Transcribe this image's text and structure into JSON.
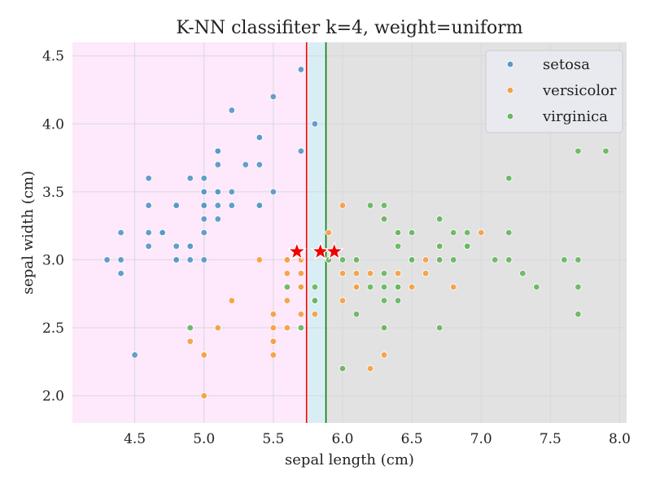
{
  "chart_data": {
    "type": "scatter",
    "title": "K-NN classifiter k=4, weight=uniform",
    "xlabel": "sepal length (cm)",
    "ylabel": "sepal width (cm)",
    "xlim": [
      4.05,
      8.05
    ],
    "ylim": [
      1.8,
      4.6
    ],
    "xticks": [
      "4.5",
      "5.0",
      "5.5",
      "6.0",
      "6.5",
      "7.0",
      "7.5",
      "8.0"
    ],
    "yticks": [
      "2.0",
      "2.5",
      "3.0",
      "3.5",
      "4.0",
      "4.5"
    ],
    "grid": true,
    "legend_position": "top-right",
    "background": "#eaeaf2",
    "regions": [
      {
        "class": "setosa",
        "x_from": 4.05,
        "x_to": 5.74,
        "color": "#fde9fb"
      },
      {
        "class": "versicolor",
        "x_from": 5.74,
        "x_to": 5.88,
        "color": "#d9eef4"
      },
      {
        "class": "virginica",
        "x_from": 5.88,
        "x_to": 8.05,
        "color": "#e2e2e2"
      }
    ],
    "boundaries": [
      {
        "x": 5.74,
        "color": "#ff0000"
      },
      {
        "x": 5.88,
        "color": "#008000"
      }
    ],
    "series": [
      {
        "name": "setosa",
        "color": "#5a9ac8",
        "points": [
          [
            5.1,
            3.5
          ],
          [
            4.9,
            3.0
          ],
          [
            4.7,
            3.2
          ],
          [
            4.6,
            3.1
          ],
          [
            5.0,
            3.6
          ],
          [
            5.4,
            3.9
          ],
          [
            4.6,
            3.4
          ],
          [
            5.0,
            3.4
          ],
          [
            4.4,
            2.9
          ],
          [
            4.9,
            3.1
          ],
          [
            5.4,
            3.7
          ],
          [
            4.8,
            3.4
          ],
          [
            4.8,
            3.0
          ],
          [
            4.3,
            3.0
          ],
          [
            5.8,
            4.0
          ],
          [
            5.7,
            4.4
          ],
          [
            5.4,
            3.9
          ],
          [
            5.1,
            3.5
          ],
          [
            5.7,
            3.8
          ],
          [
            5.1,
            3.8
          ],
          [
            5.4,
            3.4
          ],
          [
            5.1,
            3.7
          ],
          [
            4.6,
            3.6
          ],
          [
            5.1,
            3.3
          ],
          [
            4.8,
            3.4
          ],
          [
            5.0,
            3.0
          ],
          [
            5.0,
            3.4
          ],
          [
            5.2,
            3.5
          ],
          [
            5.2,
            3.4
          ],
          [
            4.7,
            3.2
          ],
          [
            4.8,
            3.1
          ],
          [
            5.4,
            3.4
          ],
          [
            5.2,
            4.1
          ],
          [
            5.5,
            4.2
          ],
          [
            4.9,
            3.1
          ],
          [
            5.0,
            3.2
          ],
          [
            5.5,
            3.5
          ],
          [
            4.9,
            3.6
          ],
          [
            4.4,
            3.0
          ],
          [
            5.1,
            3.4
          ],
          [
            5.0,
            3.5
          ],
          [
            4.5,
            2.3
          ],
          [
            4.4,
            3.2
          ],
          [
            5.0,
            3.5
          ],
          [
            5.1,
            3.8
          ],
          [
            4.8,
            3.0
          ],
          [
            5.1,
            3.8
          ],
          [
            4.6,
            3.2
          ],
          [
            5.3,
            3.7
          ],
          [
            5.0,
            3.3
          ]
        ]
      },
      {
        "name": "versicolor",
        "color": "#f4a048",
        "points": [
          [
            7.0,
            3.2
          ],
          [
            6.4,
            3.2
          ],
          [
            6.9,
            3.1
          ],
          [
            5.5,
            2.3
          ],
          [
            6.5,
            2.8
          ],
          [
            5.7,
            2.8
          ],
          [
            6.3,
            3.3
          ],
          [
            4.9,
            2.4
          ],
          [
            6.6,
            2.9
          ],
          [
            5.2,
            2.7
          ],
          [
            5.0,
            2.0
          ],
          [
            5.9,
            3.0
          ],
          [
            6.0,
            2.2
          ],
          [
            6.1,
            2.9
          ],
          [
            5.6,
            2.9
          ],
          [
            6.7,
            3.1
          ],
          [
            5.6,
            3.0
          ],
          [
            5.8,
            2.7
          ],
          [
            6.2,
            2.2
          ],
          [
            5.6,
            2.5
          ],
          [
            5.9,
            3.2
          ],
          [
            6.1,
            2.8
          ],
          [
            6.3,
            2.5
          ],
          [
            6.1,
            2.8
          ],
          [
            6.4,
            2.9
          ],
          [
            6.6,
            3.0
          ],
          [
            6.8,
            2.8
          ],
          [
            6.7,
            3.0
          ],
          [
            6.0,
            2.9
          ],
          [
            5.7,
            2.6
          ],
          [
            5.5,
            2.4
          ],
          [
            5.5,
            2.4
          ],
          [
            5.8,
            2.7
          ],
          [
            6.0,
            2.7
          ],
          [
            5.4,
            3.0
          ],
          [
            6.0,
            3.4
          ],
          [
            6.7,
            3.1
          ],
          [
            6.3,
            2.3
          ],
          [
            5.6,
            3.0
          ],
          [
            5.5,
            2.5
          ],
          [
            5.5,
            2.6
          ],
          [
            6.1,
            3.0
          ],
          [
            5.8,
            2.6
          ],
          [
            5.0,
            2.3
          ],
          [
            5.6,
            2.7
          ],
          [
            5.7,
            3.0
          ],
          [
            5.7,
            2.9
          ],
          [
            6.2,
            2.9
          ],
          [
            5.1,
            2.5
          ],
          [
            5.7,
            2.8
          ]
        ]
      },
      {
        "name": "virginica",
        "color": "#6ab764",
        "points": [
          [
            6.3,
            3.3
          ],
          [
            5.8,
            2.7
          ],
          [
            7.1,
            3.0
          ],
          [
            6.3,
            2.9
          ],
          [
            6.5,
            3.0
          ],
          [
            7.6,
            3.0
          ],
          [
            4.9,
            2.5
          ],
          [
            7.3,
            2.9
          ],
          [
            6.7,
            2.5
          ],
          [
            7.2,
            3.6
          ],
          [
            6.5,
            3.2
          ],
          [
            6.4,
            2.7
          ],
          [
            6.8,
            3.0
          ],
          [
            5.7,
            2.5
          ],
          [
            5.8,
            2.8
          ],
          [
            6.4,
            3.2
          ],
          [
            6.5,
            3.0
          ],
          [
            7.7,
            3.8
          ],
          [
            7.7,
            2.6
          ],
          [
            6.0,
            2.2
          ],
          [
            6.9,
            3.2
          ],
          [
            5.6,
            2.8
          ],
          [
            7.7,
            2.8
          ],
          [
            6.3,
            2.7
          ],
          [
            6.7,
            3.3
          ],
          [
            7.2,
            3.2
          ],
          [
            6.2,
            2.8
          ],
          [
            6.1,
            3.0
          ],
          [
            6.4,
            2.8
          ],
          [
            7.2,
            3.0
          ],
          [
            7.4,
            2.8
          ],
          [
            7.9,
            3.8
          ],
          [
            6.4,
            2.8
          ],
          [
            6.3,
            2.8
          ],
          [
            6.1,
            2.6
          ],
          [
            7.7,
            3.0
          ],
          [
            6.3,
            3.4
          ],
          [
            6.4,
            3.1
          ],
          [
            6.0,
            3.0
          ],
          [
            6.9,
            3.1
          ],
          [
            6.7,
            3.1
          ],
          [
            6.9,
            3.1
          ],
          [
            5.8,
            2.7
          ],
          [
            6.8,
            3.2
          ],
          [
            6.7,
            3.3
          ],
          [
            6.7,
            3.0
          ],
          [
            6.3,
            2.5
          ],
          [
            6.5,
            3.0
          ],
          [
            6.2,
            3.4
          ],
          [
            5.9,
            3.0
          ]
        ]
      }
    ],
    "query_points": [
      {
        "x": 5.67,
        "y": 3.06
      },
      {
        "x": 5.84,
        "y": 3.06
      },
      {
        "x": 5.94,
        "y": 3.06
      }
    ],
    "query_color": "#ee0000"
  }
}
